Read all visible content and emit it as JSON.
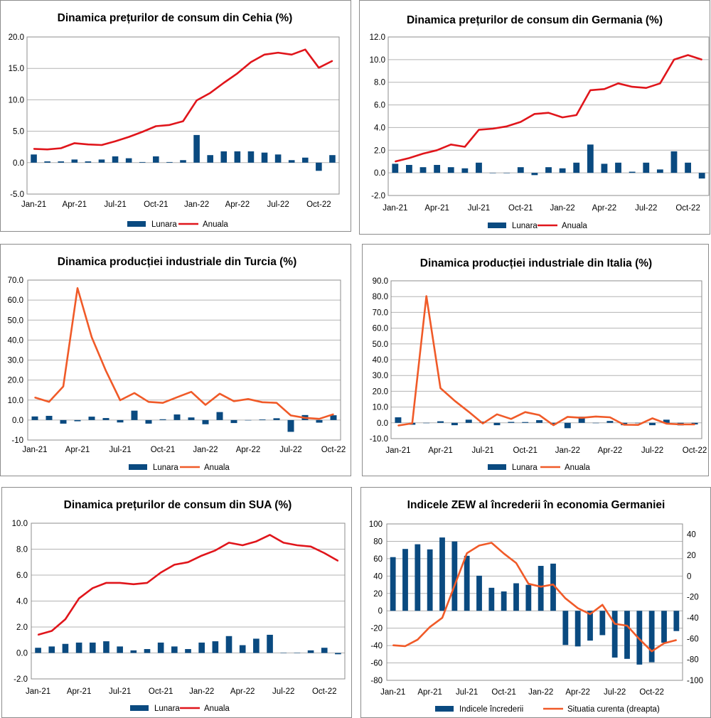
{
  "chart_data": [
    {
      "type": "bar+line",
      "title": "Dinamica prețurilor de consum din Cehia (%)",
      "categories": [
        "Jan-21",
        "Feb-21",
        "Mar-21",
        "Apr-21",
        "May-21",
        "Jun-21",
        "Jul-21",
        "Aug-21",
        "Sep-21",
        "Oct-21",
        "Nov-21",
        "Dec-21",
        "Jan-22",
        "Feb-22",
        "Mar-22",
        "Apr-22",
        "May-22",
        "Jun-22",
        "Jul-22",
        "Aug-22",
        "Sep-22",
        "Oct-22",
        "Nov-22"
      ],
      "xticks": [
        "Jan-21",
        "Apr-21",
        "Jul-21",
        "Oct-21",
        "Jan-22",
        "Apr-22",
        "Jul-22",
        "Oct-22"
      ],
      "ylim": [
        -5,
        20
      ],
      "yticks": [
        -5,
        0,
        5,
        10,
        15,
        20
      ],
      "ytick_labels": [
        "-5.0",
        "0.0",
        "5.0",
        "10.0",
        "15.0",
        "20.0"
      ],
      "series": [
        {
          "name": "Lunara",
          "kind": "bar",
          "color": "#0a4a80",
          "values": [
            1.3,
            0.2,
            0.2,
            0.5,
            0.2,
            0.5,
            1.0,
            0.7,
            0.1,
            1.0,
            0.1,
            0.4,
            4.4,
            1.2,
            1.8,
            1.8,
            1.8,
            1.6,
            1.3,
            0.4,
            0.8,
            -1.3,
            1.2
          ]
        },
        {
          "name": "Anuala",
          "kind": "line",
          "color": "#e0151b",
          "values": [
            2.2,
            2.1,
            2.3,
            3.1,
            2.9,
            2.8,
            3.4,
            4.1,
            4.9,
            5.8,
            6.0,
            6.6,
            9.9,
            11.1,
            12.7,
            14.2,
            16.0,
            17.2,
            17.5,
            17.2,
            18.0,
            15.1,
            16.2
          ]
        }
      ]
    },
    {
      "type": "bar+line",
      "title": "Dinamica prețurilor de consum din Germania (%)",
      "categories": [
        "Jan-21",
        "Feb-21",
        "Mar-21",
        "Apr-21",
        "May-21",
        "Jun-21",
        "Jul-21",
        "Aug-21",
        "Sep-21",
        "Oct-21",
        "Nov-21",
        "Dec-21",
        "Jan-22",
        "Feb-22",
        "Mar-22",
        "Apr-22",
        "May-22",
        "Jun-22",
        "Jul-22",
        "Aug-22",
        "Sep-22",
        "Oct-22",
        "Nov-22"
      ],
      "xticks": [
        "Jan-21",
        "Apr-21",
        "Jul-21",
        "Oct-21",
        "Jan-22",
        "Apr-22",
        "Jul-22",
        "Oct-22"
      ],
      "ylim": [
        -2,
        12
      ],
      "yticks": [
        -2,
        0,
        2,
        4,
        6,
        8,
        10,
        12
      ],
      "ytick_labels": [
        "-2.0",
        "0.0",
        "2.0",
        "4.0",
        "6.0",
        "8.0",
        "10.0",
        "12.0"
      ],
      "series": [
        {
          "name": "Lunara",
          "kind": "bar",
          "color": "#0a4a80",
          "values": [
            0.8,
            0.7,
            0.5,
            0.7,
            0.5,
            0.4,
            0.9,
            0.0,
            0.0,
            0.5,
            -0.2,
            0.5,
            0.4,
            0.9,
            2.5,
            0.8,
            0.9,
            0.1,
            0.9,
            0.3,
            1.9,
            0.9,
            -0.5
          ]
        },
        {
          "name": "Anuala",
          "kind": "line",
          "color": "#e0151b",
          "values": [
            1.0,
            1.3,
            1.7,
            2.0,
            2.5,
            2.3,
            3.8,
            3.9,
            4.1,
            4.5,
            5.2,
            5.3,
            4.9,
            5.1,
            7.3,
            7.4,
            7.9,
            7.6,
            7.5,
            7.9,
            10.0,
            10.4,
            10.0
          ]
        }
      ]
    },
    {
      "type": "bar+line",
      "title": "Dinamica producției industriale din Turcia (%)",
      "categories": [
        "Jan-21",
        "Feb-21",
        "Mar-21",
        "Apr-21",
        "May-21",
        "Jun-21",
        "Jul-21",
        "Aug-21",
        "Sep-21",
        "Oct-21",
        "Nov-21",
        "Dec-21",
        "Jan-22",
        "Feb-22",
        "Mar-22",
        "Apr-22",
        "May-22",
        "Jun-22",
        "Jul-22",
        "Aug-22",
        "Sep-22",
        "Oct-22"
      ],
      "xticks": [
        "Jan-21",
        "Apr-21",
        "Jul-21",
        "Oct-21",
        "Jan-22",
        "Apr-22",
        "Jul-22",
        "Oct-22"
      ],
      "ylim": [
        -10,
        70
      ],
      "yticks": [
        -10,
        0,
        10,
        20,
        30,
        40,
        50,
        60,
        70
      ],
      "ytick_labels": [
        "-10",
        "0.0",
        "10.0",
        "20.0",
        "30.0",
        "40.0",
        "50.0",
        "60.0",
        "70.0"
      ],
      "series": [
        {
          "name": "Lunara",
          "kind": "bar",
          "color": "#0a4a80",
          "values": [
            1.8,
            2.1,
            -1.8,
            -0.6,
            1.7,
            1.0,
            -1.2,
            4.7,
            -1.8,
            0.4,
            2.8,
            1.3,
            -2.1,
            4.0,
            -1.5,
            0.0,
            0.3,
            0.9,
            -5.9,
            2.5,
            -1.3,
            2.4
          ]
        },
        {
          "name": "Anuala",
          "kind": "line",
          "color": "#f05a28",
          "values": [
            11.3,
            9.1,
            16.8,
            66.0,
            41.4,
            24.6,
            9.9,
            13.5,
            9.1,
            8.6,
            11.4,
            14.1,
            7.6,
            13.2,
            9.4,
            10.5,
            8.9,
            8.6,
            2.3,
            1.1,
            0.6,
            2.9
          ]
        }
      ]
    },
    {
      "type": "bar+line",
      "title": "Dinamica producției industriale din Italia (%)",
      "categories": [
        "Jan-21",
        "Feb-21",
        "Mar-21",
        "Apr-21",
        "May-21",
        "Jun-21",
        "Jul-21",
        "Aug-21",
        "Sep-21",
        "Oct-21",
        "Nov-21",
        "Dec-21",
        "Jan-22",
        "Feb-22",
        "Mar-22",
        "Apr-22",
        "May-22",
        "Jun-22",
        "Jul-22",
        "Aug-22",
        "Sep-22",
        "Oct-22"
      ],
      "xticks": [
        "Jan-21",
        "Apr-21",
        "Jul-21",
        "Oct-21",
        "Jan-22",
        "Apr-22",
        "Jul-22",
        "Oct-22"
      ],
      "ylim": [
        -10,
        90
      ],
      "yticks": [
        -10,
        0,
        10,
        20,
        30,
        40,
        50,
        60,
        70,
        80,
        90
      ],
      "ytick_labels": [
        "-10.0",
        "0.0",
        "10.0",
        "20.0",
        "30.0",
        "40.0",
        "50.0",
        "60.0",
        "70.0",
        "80.0",
        "90.0"
      ],
      "series": [
        {
          "name": "Lunara",
          "kind": "bar",
          "color": "#0a4a80",
          "values": [
            3.5,
            -1.2,
            0.0,
            1.0,
            -1.5,
            2.0,
            0.8,
            -1.5,
            0.6,
            0.5,
            1.7,
            -1.1,
            -3.4,
            3.9,
            0.0,
            1.2,
            -1.5,
            0.0,
            -1.5,
            2.0,
            -1.6,
            -1.0
          ]
        },
        {
          "name": "Anuala",
          "kind": "line",
          "color": "#f05a28",
          "values": [
            -1.7,
            -0.3,
            80.3,
            22.0,
            14.0,
            7.0,
            -0.4,
            5.4,
            2.5,
            6.8,
            4.9,
            -1.5,
            3.8,
            3.2,
            4.0,
            3.5,
            -1.2,
            -1.3,
            2.9,
            -0.5,
            -1.0,
            -1.0
          ]
        }
      ]
    },
    {
      "type": "bar+line",
      "title": "Dinamica prețurilor de consum din SUA (%)",
      "categories": [
        "Jan-21",
        "Feb-21",
        "Mar-21",
        "Apr-21",
        "May-21",
        "Jun-21",
        "Jul-21",
        "Aug-21",
        "Sep-21",
        "Oct-21",
        "Nov-21",
        "Dec-21",
        "Jan-22",
        "Feb-22",
        "Mar-22",
        "Apr-22",
        "May-22",
        "Jun-22",
        "Jul-22",
        "Aug-22",
        "Sep-22",
        "Oct-22",
        "Nov-22"
      ],
      "xticks": [
        "Jan-21",
        "Apr-21",
        "Jul-21",
        "Oct-21",
        "Jan-22",
        "Apr-22",
        "Jul-22",
        "Oct-22"
      ],
      "ylim": [
        -2,
        10
      ],
      "yticks": [
        -2,
        0,
        2,
        4,
        6,
        8,
        10
      ],
      "ytick_labels": [
        "-2.0",
        "0.0",
        "2.0",
        "4.0",
        "6.0",
        "8.0",
        "10.0"
      ],
      "series": [
        {
          "name": "Lunara",
          "kind": "bar",
          "color": "#0a4a80",
          "values": [
            0.4,
            0.5,
            0.7,
            0.8,
            0.8,
            0.9,
            0.5,
            0.2,
            0.3,
            0.8,
            0.5,
            0.3,
            0.8,
            0.9,
            1.3,
            0.6,
            1.1,
            1.4,
            0.0,
            0.0,
            0.2,
            0.4,
            -0.1
          ]
        },
        {
          "name": "Anuala",
          "kind": "line",
          "color": "#e0151b",
          "values": [
            1.4,
            1.7,
            2.6,
            4.2,
            5.0,
            5.4,
            5.4,
            5.3,
            5.4,
            6.2,
            6.8,
            7.0,
            7.5,
            7.9,
            8.5,
            8.3,
            8.6,
            9.1,
            8.5,
            8.3,
            8.2,
            7.7,
            7.1
          ]
        }
      ]
    },
    {
      "type": "bar+line",
      "title": "Indicele ZEW al încrederii în economia Germaniei",
      "categories": [
        "Jan-21",
        "Feb-21",
        "Mar-21",
        "Apr-21",
        "May-21",
        "Jun-21",
        "Jul-21",
        "Aug-21",
        "Sep-21",
        "Oct-21",
        "Nov-21",
        "Dec-21",
        "Jan-22",
        "Feb-22",
        "Mar-22",
        "Apr-22",
        "May-22",
        "Jun-22",
        "Jul-22",
        "Aug-22",
        "Sep-22",
        "Oct-22",
        "Nov-22",
        "Dec-22"
      ],
      "xticks": [
        "Jan-21",
        "Apr-21",
        "Jul-21",
        "Oct-21",
        "Jan-22",
        "Apr-22",
        "Jul-22",
        "Oct-22"
      ],
      "ylim": [
        -80,
        100
      ],
      "yticks": [
        -80,
        -60,
        -40,
        -20,
        0,
        20,
        40,
        60,
        80,
        100
      ],
      "ytick_labels": [
        "-80",
        "-60",
        "-40",
        "-20",
        "0",
        "20",
        "40",
        "60",
        "80",
        "100"
      ],
      "y2lim": [
        -100,
        50
      ],
      "y2ticks": [
        -100,
        -80,
        -60,
        -40,
        -20,
        0,
        20,
        40
      ],
      "y2tick_labels": [
        "-100",
        "-80",
        "-60",
        "-40",
        "-20",
        "0",
        "20",
        "40"
      ],
      "series": [
        {
          "name": "Indicele încrederii",
          "kind": "bar",
          "axis": "left",
          "color": "#0a4a80",
          "values": [
            61.8,
            71.2,
            76.6,
            70.7,
            84.4,
            79.8,
            63.3,
            40.4,
            26.5,
            22.3,
            31.7,
            29.9,
            51.7,
            54.3,
            -39.3,
            -41.0,
            -34.3,
            -28.0,
            -53.8,
            -55.3,
            -61.9,
            -59.2,
            -36.7,
            -23.3
          ]
        },
        {
          "name": "Situatia curenta (dreapta)",
          "kind": "line",
          "axis": "right",
          "color": "#f05a28",
          "values": [
            -66.4,
            -67.2,
            -61.0,
            -48.8,
            -40.1,
            -9.1,
            21.9,
            29.3,
            31.9,
            21.6,
            12.5,
            -7.4,
            -10.2,
            -8.1,
            -21.4,
            -30.8,
            -36.5,
            -27.6,
            -45.8,
            -47.6,
            -60.5,
            -72.2,
            -64.5,
            -61.4
          ]
        }
      ]
    }
  ]
}
